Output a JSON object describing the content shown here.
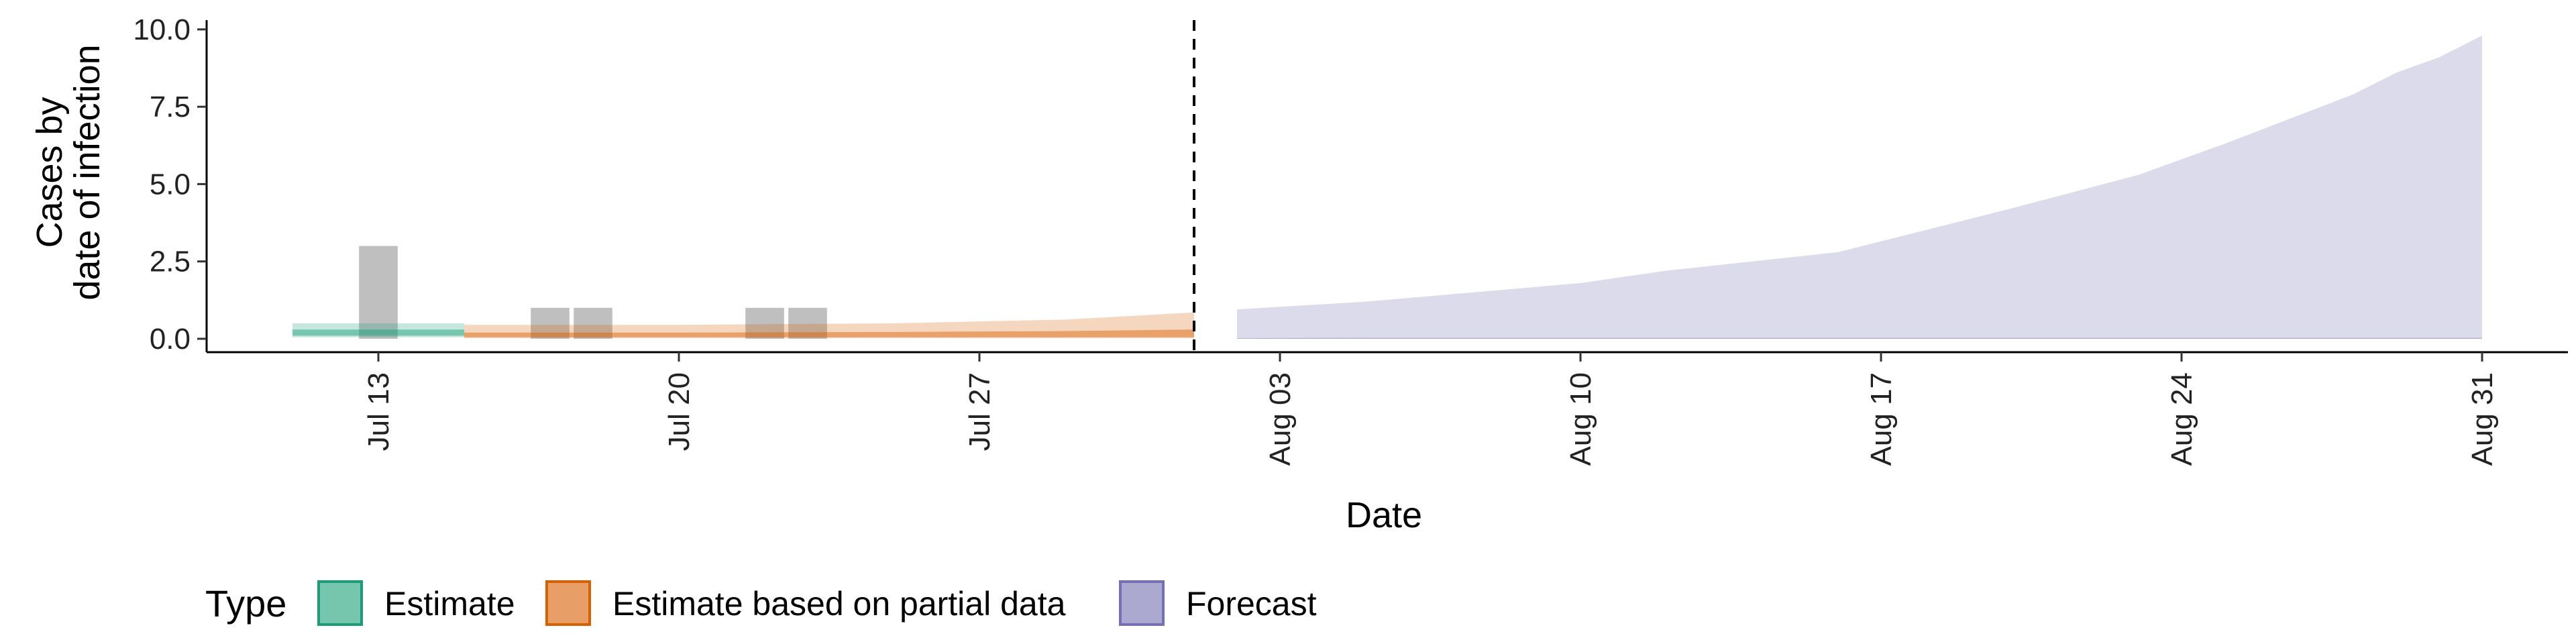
{
  "chart_data": {
    "type": "area",
    "xlabel": "Date",
    "ylabel": [
      "Cases by",
      "date of infection"
    ],
    "ylim": [
      0,
      10.3
    ],
    "xlim": [
      "2020-07-09",
      "2020-09-02"
    ],
    "y_ticks": [
      {
        "value": 0,
        "label": "0.0"
      },
      {
        "value": 2.5,
        "label": "2.5"
      },
      {
        "value": 5,
        "label": "5.0"
      },
      {
        "value": 7.5,
        "label": "7.5"
      },
      {
        "value": 10,
        "label": "10.0"
      }
    ],
    "x_ticks": [
      {
        "date": "2020-07-13",
        "label": "Jul 13"
      },
      {
        "date": "2020-07-20",
        "label": "Jul 20"
      },
      {
        "date": "2020-07-27",
        "label": "Jul 27"
      },
      {
        "date": "2020-08-03",
        "label": "Aug 03"
      },
      {
        "date": "2020-08-10",
        "label": "Aug 10"
      },
      {
        "date": "2020-08-17",
        "label": "Aug 17"
      },
      {
        "date": "2020-08-24",
        "label": "Aug 24"
      },
      {
        "date": "2020-08-31",
        "label": "Aug 31"
      }
    ],
    "vline_date": "2020-08-01",
    "observed_cases": [
      {
        "date": "2020-07-13",
        "value": 3
      },
      {
        "date": "2020-07-17",
        "value": 1
      },
      {
        "date": "2020-07-18",
        "value": 1
      },
      {
        "date": "2020-07-22",
        "value": 1
      },
      {
        "date": "2020-07-23",
        "value": 1
      }
    ],
    "series": [
      {
        "name": "Estimate",
        "color": "#1b9e77",
        "bands": [
          {
            "x": [
              "2020-07-11",
              "2020-07-15"
            ],
            "outer_lower": [
              0.05,
              0.05
            ],
            "outer_upper": [
              0.5,
              0.5
            ],
            "inner_lower": [
              0.1,
              0.1
            ],
            "inner_upper": [
              0.3,
              0.3
            ]
          }
        ]
      },
      {
        "name": "Estimate based on partial data",
        "color": "#d95f02",
        "bands": [
          {
            "x": [
              "2020-07-15",
              "2020-07-20",
              "2020-07-25",
              "2020-07-29",
              "2020-08-01"
            ],
            "outer_lower": [
              0.02,
              0.02,
              0.02,
              0.02,
              0.02
            ],
            "outer_upper": [
              0.45,
              0.45,
              0.5,
              0.62,
              0.85
            ],
            "inner_lower": [
              0.05,
              0.05,
              0.05,
              0.05,
              0.05
            ],
            "inner_upper": [
              0.2,
              0.2,
              0.22,
              0.25,
              0.3
            ]
          }
        ]
      },
      {
        "name": "Forecast",
        "color": "#7570b3",
        "bands": [
          {
            "x": [
              "2020-08-02",
              "2020-08-05",
              "2020-08-10",
              "2020-08-12",
              "2020-08-16",
              "2020-08-20",
              "2020-08-23",
              "2020-08-25",
              "2020-08-28",
              "2020-08-29",
              "2020-08-30",
              "2020-08-31"
            ],
            "outer_lower": [
              0,
              0,
              0,
              0,
              0,
              0,
              0,
              0,
              0,
              0,
              0,
              0
            ],
            "outer_upper": [
              0.95,
              1.2,
              1.8,
              2.2,
              2.8,
              4.2,
              5.3,
              6.3,
              7.9,
              8.6,
              9.1,
              9.8
            ],
            "inner_lower": [
              0,
              0,
              0,
              0,
              0,
              0,
              0,
              0,
              0,
              0,
              0,
              0
            ],
            "inner_upper": [
              0.02,
              0.03,
              0.03,
              0.03,
              0.03,
              0.03,
              0.03,
              0.03,
              0.03,
              0.03,
              0.03,
              0.03
            ]
          }
        ]
      }
    ],
    "legend": {
      "title": "Type",
      "position": "bottom-left",
      "entries": [
        {
          "label": "Estimate",
          "color": "#1b9e77"
        },
        {
          "label": "Estimate based on partial data",
          "color": "#d95f02"
        },
        {
          "label": "Forecast",
          "color": "#7570b3"
        }
      ]
    },
    "grid": false
  }
}
